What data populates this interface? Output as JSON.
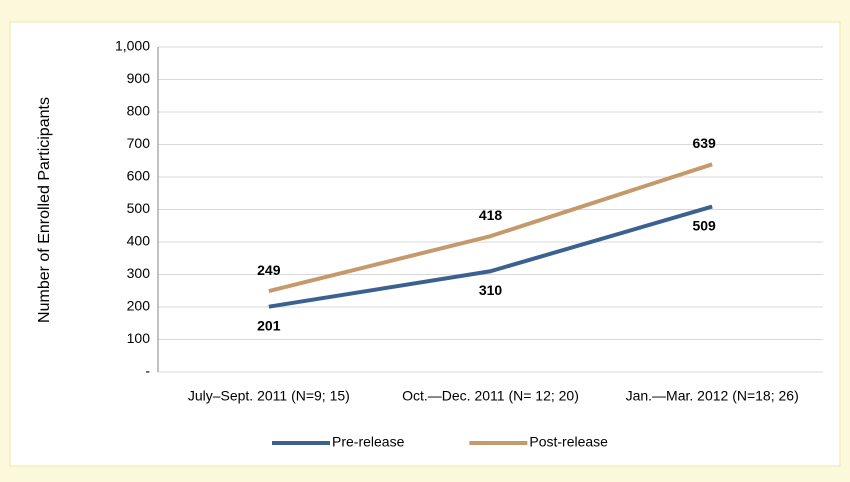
{
  "chart_data": {
    "type": "line",
    "y_label": "Number of Enrolled Participants",
    "categories": [
      "July–Sept. 2011 (N=9; 15)",
      "Oct.—Dec. 2011 (N= 12; 20)",
      "Jan.—Mar. 2012 (N=18; 26)"
    ],
    "series": [
      {
        "name": "Pre-release",
        "color": "#3c6190",
        "values": [
          201,
          310,
          509
        ]
      },
      {
        "name": "Post-release",
        "color": "#c49a6c",
        "values": [
          249,
          418,
          639
        ]
      }
    ],
    "ylim": [
      0,
      1000
    ],
    "yticks": [
      {
        "value": 0,
        "label": "-"
      },
      100,
      200,
      300,
      400,
      500,
      600,
      700,
      800,
      900,
      {
        "value": 1000,
        "label": "1,000"
      }
    ],
    "grid": true,
    "legend": "bottom"
  }
}
